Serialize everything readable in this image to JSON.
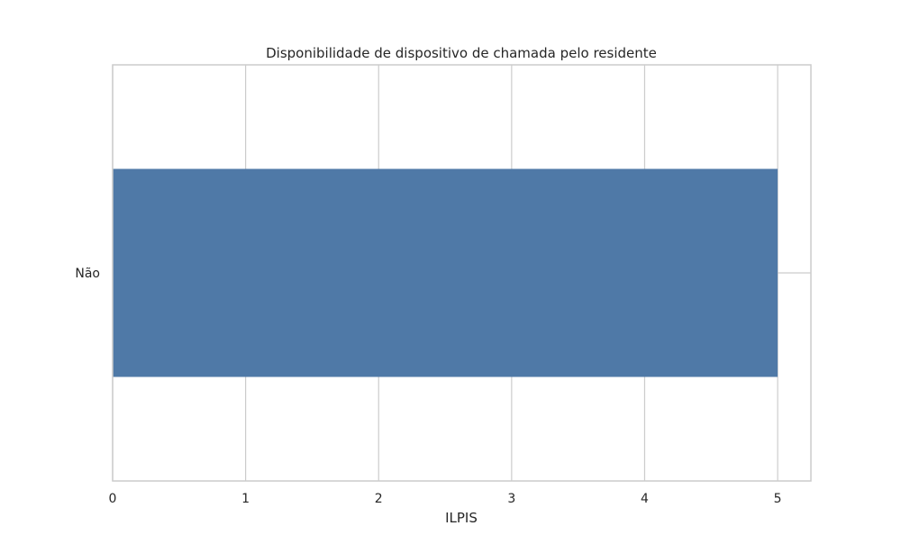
{
  "chart_data": {
    "type": "bar",
    "orientation": "horizontal",
    "title": "Disponibilidade de dispositivo de chamada pelo residente",
    "xlabel": "ILPIS",
    "ylabel": "",
    "categories": [
      "Não"
    ],
    "values": [
      5
    ],
    "xlim": [
      0,
      5.25
    ],
    "xticks": [
      0,
      1,
      2,
      3,
      4,
      5
    ],
    "grid": true,
    "bar_color": "#4f79a7",
    "grid_color": "#cccccc",
    "frame_color": "#cccccc"
  }
}
